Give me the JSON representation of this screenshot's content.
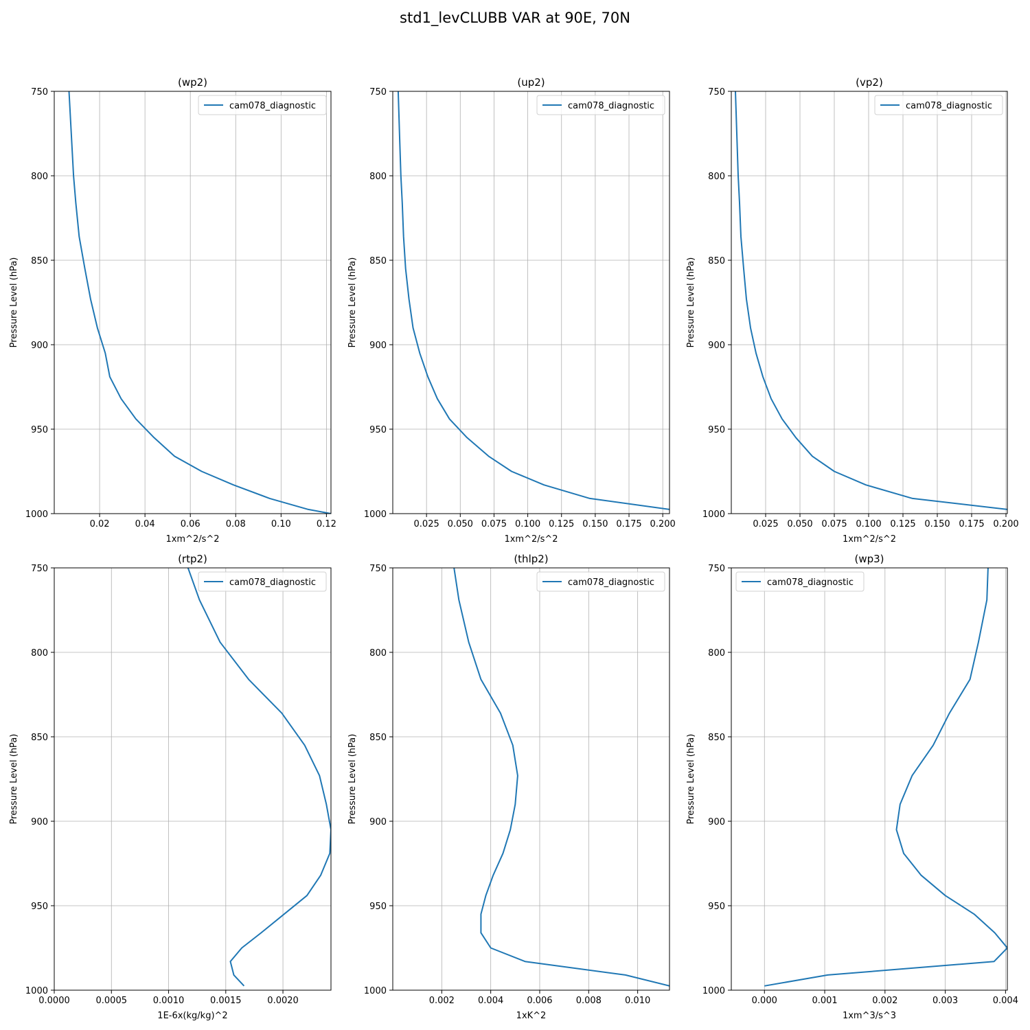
{
  "figure": {
    "title": "std1_levCLUBB VAR at 90E, 70N"
  },
  "colors": {
    "line": "#1f77b4",
    "grid": "#b0b0b0",
    "axis": "#000000"
  },
  "chart_data": [
    {
      "type": "line",
      "title": "(wp2)",
      "xlabel": "1xm^2/s^2",
      "ylabel": "Pressure Level (hPa)",
      "xlim": [
        0,
        0.122
      ],
      "ylim": [
        1000,
        750
      ],
      "xticks": [
        0.02,
        0.04,
        0.06,
        0.08,
        0.1,
        0.12
      ],
      "xtick_labels": [
        "0.02",
        "0.04",
        "0.06",
        "0.08",
        "0.10",
        "0.12"
      ],
      "yticks": [
        750,
        800,
        850,
        900,
        950,
        1000
      ],
      "grid": true,
      "legend": "top-right",
      "series": [
        {
          "name": "cam078_diagnostic",
          "x": [
            0.0065,
            0.0075,
            0.0085,
            0.0095,
            0.011,
            0.0135,
            0.016,
            0.019,
            0.0225,
            0.0245,
            0.0295,
            0.036,
            0.044,
            0.053,
            0.065,
            0.079,
            0.095,
            0.112,
            0.122
          ],
          "y": [
            750,
            775,
            800,
            816,
            836,
            855,
            873,
            890,
            905,
            919,
            932,
            944,
            955,
            966,
            975,
            983,
            991,
            997.5,
            1000
          ]
        }
      ]
    },
    {
      "type": "line",
      "title": "(up2)",
      "xlabel": "1xm^2/s^2",
      "ylabel": "Pressure Level (hPa)",
      "xlim": [
        0,
        0.205
      ],
      "ylim": [
        1000,
        750
      ],
      "xticks": [
        0.025,
        0.05,
        0.075,
        0.1,
        0.125,
        0.15,
        0.175,
        0.2
      ],
      "xtick_labels": [
        "0.025",
        "0.050",
        "0.075",
        "0.100",
        "0.125",
        "0.150",
        "0.175",
        "0.200"
      ],
      "yticks": [
        750,
        800,
        850,
        900,
        950,
        1000
      ],
      "grid": true,
      "legend": "top-right",
      "series": [
        {
          "name": "cam078_diagnostic",
          "x": [
            0.004,
            0.005,
            0.006,
            0.007,
            0.008,
            0.0095,
            0.012,
            0.015,
            0.02,
            0.026,
            0.033,
            0.042,
            0.055,
            0.071,
            0.088,
            0.112,
            0.146,
            0.205
          ],
          "y": [
            750,
            775,
            800,
            816,
            836,
            855,
            873,
            890,
            905,
            919,
            932,
            944,
            955,
            966,
            975,
            983,
            991,
            997.5
          ]
        }
      ]
    },
    {
      "type": "line",
      "title": "(vp2)",
      "xlabel": "1xm^2/s^2",
      "ylabel": "Pressure Level (hPa)",
      "xlim": [
        0,
        0.201
      ],
      "ylim": [
        1000,
        750
      ],
      "xticks": [
        0.025,
        0.05,
        0.075,
        0.1,
        0.125,
        0.15,
        0.175,
        0.2
      ],
      "xtick_labels": [
        "0.025",
        "0.050",
        "0.075",
        "0.100",
        "0.125",
        "0.150",
        "0.175",
        "0.200"
      ],
      "yticks": [
        750,
        800,
        850,
        900,
        950,
        1000
      ],
      "grid": true,
      "legend": "top-right",
      "series": [
        {
          "name": "cam078_diagnostic",
          "x": [
            0.003,
            0.004,
            0.005,
            0.006,
            0.007,
            0.009,
            0.011,
            0.014,
            0.018,
            0.023,
            0.029,
            0.037,
            0.047,
            0.059,
            0.075,
            0.098,
            0.132,
            0.201
          ],
          "y": [
            750,
            775,
            800,
            816,
            836,
            855,
            873,
            890,
            905,
            919,
            932,
            944,
            955,
            966,
            975,
            983,
            991,
            997.5
          ]
        }
      ]
    },
    {
      "type": "line",
      "title": "(rtp2)",
      "xlabel": "1E-6x(kg/kg)^2",
      "ylabel": "Pressure Level (hPa)",
      "xlim": [
        0,
        0.00242
      ],
      "ylim": [
        1000,
        750
      ],
      "xticks": [
        0.0,
        0.0005,
        0.001,
        0.0015,
        0.002
      ],
      "xtick_labels": [
        "0.0000",
        "0.0005",
        "0.0010",
        "0.0015",
        "0.0020"
      ],
      "yticks": [
        750,
        800,
        850,
        900,
        950,
        1000
      ],
      "grid": true,
      "legend": "top-right",
      "series": [
        {
          "name": "cam078_diagnostic",
          "x": [
            0.00117,
            0.00127,
            0.00145,
            0.0017,
            0.00199,
            0.00219,
            0.00232,
            0.00238,
            0.00242,
            0.00241,
            0.00233,
            0.00221,
            0.00201,
            0.00181,
            0.00164,
            0.00154,
            0.00157,
            0.00166
          ],
          "y": [
            750,
            769,
            794,
            816,
            836,
            855,
            873,
            890,
            905,
            919,
            932,
            944,
            955,
            966,
            975,
            983,
            991,
            997.5
          ]
        }
      ]
    },
    {
      "type": "line",
      "title": "(thlp2)",
      "xlabel": "1xK^2",
      "ylabel": "Pressure Level (hPa)",
      "xlim": [
        0,
        0.0113
      ],
      "ylim": [
        1000,
        750
      ],
      "xticks": [
        0.002,
        0.004,
        0.006,
        0.008,
        0.01
      ],
      "xtick_labels": [
        "0.002",
        "0.004",
        "0.006",
        "0.008",
        "0.010"
      ],
      "yticks": [
        750,
        800,
        850,
        900,
        950,
        1000
      ],
      "grid": true,
      "legend": "top-right",
      "series": [
        {
          "name": "cam078_diagnostic",
          "x": [
            0.0025,
            0.0027,
            0.0031,
            0.0036,
            0.0044,
            0.0049,
            0.0051,
            0.005,
            0.0048,
            0.0045,
            0.0041,
            0.0038,
            0.0036,
            0.0036,
            0.004,
            0.0054,
            0.0095,
            0.0113
          ],
          "y": [
            750,
            769,
            794,
            816,
            836,
            855,
            873,
            890,
            905,
            919,
            932,
            944,
            955,
            966,
            975,
            983,
            991,
            997.5
          ]
        }
      ]
    },
    {
      "type": "line",
      "title": "(wp3)",
      "xlabel": "1xm^3/s^3",
      "ylabel": "Pressure Level (hPa)",
      "xlim": [
        -0.00055,
        0.00403
      ],
      "ylim": [
        1000,
        750
      ],
      "xticks": [
        0.0,
        0.001,
        0.002,
        0.003,
        0.004
      ],
      "xtick_labels": [
        "0.000",
        "0.001",
        "0.002",
        "0.003",
        "0.004"
      ],
      "yticks": [
        750,
        800,
        850,
        900,
        950,
        1000
      ],
      "grid": true,
      "legend": "top-left",
      "series": [
        {
          "name": "cam078_diagnostic",
          "x": [
            0.00371,
            0.00369,
            0.00355,
            0.00341,
            0.00307,
            0.0028,
            0.00245,
            0.00225,
            0.00219,
            0.00231,
            0.0026,
            0.003,
            0.00348,
            0.00382,
            0.00403,
            0.00381,
            0.00105,
            0.0
          ],
          "y": [
            750,
            769,
            794,
            816,
            836,
            855,
            873,
            890,
            905,
            919,
            932,
            944,
            955,
            966,
            975,
            983,
            991,
            997.5
          ]
        }
      ]
    }
  ]
}
